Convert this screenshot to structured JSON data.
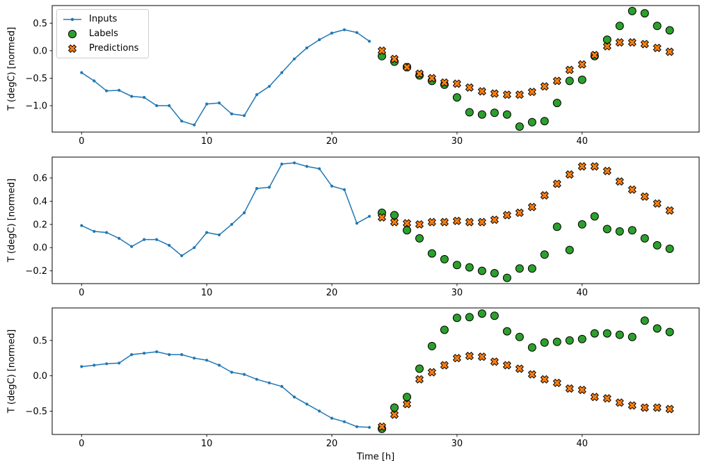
{
  "figure": {
    "background_color": "#ffffff",
    "legend": {
      "position": "upper left",
      "items": [
        {
          "label": "Inputs",
          "marker": "line-with-dot",
          "color": "#1f77b4"
        },
        {
          "label": "Labels",
          "marker": "circle",
          "color": "#2ca02c"
        },
        {
          "label": "Predictions",
          "marker": "X",
          "color": "#ff7f0e"
        }
      ]
    }
  },
  "chart_data": [
    {
      "type": "line",
      "ylabel": "T (degC) [normed]",
      "xlim": [
        -2.35,
        49.35
      ],
      "ylim": [
        -1.48,
        0.82
      ],
      "xticks": [
        0,
        10,
        20,
        30,
        40
      ],
      "yticks": [
        0.5,
        0.0,
        -0.5,
        -1.0
      ],
      "grid": false,
      "series": [
        {
          "name": "Inputs",
          "kind": "line",
          "color": "#1f77b4",
          "x": [
            0,
            1,
            2,
            3,
            4,
            5,
            6,
            7,
            8,
            9,
            10,
            11,
            12,
            13,
            14,
            15,
            16,
            17,
            18,
            19,
            20,
            21,
            22,
            23
          ],
          "y": [
            -0.4,
            -0.55,
            -0.73,
            -0.72,
            -0.83,
            -0.85,
            -1.0,
            -1.0,
            -1.28,
            -1.35,
            -0.97,
            -0.95,
            -1.15,
            -1.18,
            -0.8,
            -0.65,
            -0.4,
            -0.15,
            0.05,
            0.2,
            0.32,
            0.38,
            0.33,
            0.17
          ]
        },
        {
          "name": "Labels",
          "kind": "circle",
          "color": "#2ca02c",
          "x": [
            24,
            25,
            26,
            27,
            28,
            29,
            30,
            31,
            32,
            33,
            34,
            35,
            36,
            37,
            38,
            39,
            40,
            41,
            42,
            43,
            44,
            45,
            46,
            47
          ],
          "y": [
            -0.1,
            -0.2,
            -0.3,
            -0.45,
            -0.55,
            -0.62,
            -0.85,
            -1.12,
            -1.16,
            -1.13,
            -1.16,
            -1.38,
            -1.3,
            -1.28,
            -0.95,
            -0.55,
            -0.53,
            -0.1,
            0.2,
            0.45,
            0.72,
            0.68,
            0.45,
            0.37
          ]
        },
        {
          "name": "Predictions",
          "kind": "x",
          "color": "#ff7f0e",
          "x": [
            24,
            25,
            26,
            27,
            28,
            29,
            30,
            31,
            32,
            33,
            34,
            35,
            36,
            37,
            38,
            39,
            40,
            41,
            42,
            43,
            44,
            45,
            46,
            47
          ],
          "y": [
            0.0,
            -0.15,
            -0.3,
            -0.42,
            -0.5,
            -0.58,
            -0.6,
            -0.67,
            -0.74,
            -0.78,
            -0.8,
            -0.8,
            -0.75,
            -0.65,
            -0.55,
            -0.35,
            -0.25,
            -0.08,
            0.08,
            0.15,
            0.15,
            0.12,
            0.05,
            -0.02
          ]
        }
      ]
    },
    {
      "type": "line",
      "ylabel": "T (degC) [normed]",
      "xlim": [
        -2.35,
        49.35
      ],
      "ylim": [
        -0.31,
        0.78
      ],
      "xticks": [
        0,
        10,
        20,
        30,
        40
      ],
      "yticks": [
        0.6,
        0.4,
        0.2,
        0.0,
        -0.2
      ],
      "grid": false,
      "series": [
        {
          "name": "Inputs",
          "kind": "line",
          "color": "#1f77b4",
          "x": [
            0,
            1,
            2,
            3,
            4,
            5,
            6,
            7,
            8,
            9,
            10,
            11,
            12,
            13,
            14,
            15,
            16,
            17,
            18,
            19,
            20,
            21,
            22,
            23
          ],
          "y": [
            0.19,
            0.14,
            0.13,
            0.08,
            0.01,
            0.07,
            0.07,
            0.02,
            -0.07,
            0.0,
            0.13,
            0.11,
            0.2,
            0.3,
            0.51,
            0.52,
            0.72,
            0.73,
            0.7,
            0.68,
            0.53,
            0.5,
            0.21,
            0.27
          ]
        },
        {
          "name": "Labels",
          "kind": "circle",
          "color": "#2ca02c",
          "x": [
            24,
            25,
            26,
            27,
            28,
            29,
            30,
            31,
            32,
            33,
            34,
            35,
            36,
            37,
            38,
            39,
            40,
            41,
            42,
            43,
            44,
            45,
            46,
            47
          ],
          "y": [
            0.3,
            0.28,
            0.15,
            0.08,
            -0.05,
            -0.1,
            -0.15,
            -0.17,
            -0.2,
            -0.22,
            -0.26,
            -0.18,
            -0.18,
            -0.06,
            0.18,
            -0.02,
            0.2,
            0.27,
            0.16,
            0.14,
            0.15,
            0.08,
            0.02,
            -0.01
          ]
        },
        {
          "name": "Predictions",
          "kind": "x",
          "color": "#ff7f0e",
          "x": [
            24,
            25,
            26,
            27,
            28,
            29,
            30,
            31,
            32,
            33,
            34,
            35,
            36,
            37,
            38,
            39,
            40,
            41,
            42,
            43,
            44,
            45,
            46,
            47
          ],
          "y": [
            0.26,
            0.22,
            0.21,
            0.2,
            0.22,
            0.22,
            0.23,
            0.22,
            0.22,
            0.24,
            0.28,
            0.3,
            0.35,
            0.45,
            0.55,
            0.63,
            0.7,
            0.7,
            0.66,
            0.57,
            0.5,
            0.44,
            0.38,
            0.32
          ]
        }
      ]
    },
    {
      "type": "line",
      "xlabel": "Time [h]",
      "ylabel": "T (degC) [normed]",
      "xlim": [
        -2.35,
        49.35
      ],
      "ylim": [
        -0.83,
        0.96
      ],
      "xticks": [
        0,
        10,
        20,
        30,
        40
      ],
      "yticks": [
        0.5,
        0.0,
        -0.5
      ],
      "grid": false,
      "series": [
        {
          "name": "Inputs",
          "kind": "line",
          "color": "#1f77b4",
          "x": [
            0,
            1,
            2,
            3,
            4,
            5,
            6,
            7,
            8,
            9,
            10,
            11,
            12,
            13,
            14,
            15,
            16,
            17,
            18,
            19,
            20,
            21,
            22,
            23
          ],
          "y": [
            0.13,
            0.15,
            0.17,
            0.18,
            0.3,
            0.32,
            0.34,
            0.3,
            0.3,
            0.25,
            0.22,
            0.15,
            0.05,
            0.02,
            -0.05,
            -0.1,
            -0.15,
            -0.3,
            -0.4,
            -0.5,
            -0.6,
            -0.65,
            -0.72,
            -0.73
          ]
        },
        {
          "name": "Labels",
          "kind": "circle",
          "color": "#2ca02c",
          "x": [
            24,
            25,
            26,
            27,
            28,
            29,
            30,
            31,
            32,
            33,
            34,
            35,
            36,
            37,
            38,
            39,
            40,
            41,
            42,
            43,
            44,
            45,
            46,
            47
          ],
          "y": [
            -0.75,
            -0.45,
            -0.3,
            0.1,
            0.42,
            0.65,
            0.82,
            0.83,
            0.88,
            0.85,
            0.63,
            0.55,
            0.4,
            0.47,
            0.48,
            0.5,
            0.52,
            0.6,
            0.6,
            0.58,
            0.55,
            0.78,
            0.67,
            0.62
          ]
        },
        {
          "name": "Predictions",
          "kind": "x",
          "color": "#ff7f0e",
          "x": [
            24,
            25,
            26,
            27,
            28,
            29,
            30,
            31,
            32,
            33,
            34,
            35,
            36,
            37,
            38,
            39,
            40,
            41,
            42,
            43,
            44,
            45,
            46,
            47
          ],
          "y": [
            -0.72,
            -0.55,
            -0.4,
            -0.05,
            0.05,
            0.15,
            0.25,
            0.28,
            0.27,
            0.2,
            0.15,
            0.1,
            0.02,
            -0.05,
            -0.1,
            -0.18,
            -0.2,
            -0.3,
            -0.32,
            -0.38,
            -0.42,
            -0.45,
            -0.45,
            -0.47
          ]
        }
      ]
    }
  ]
}
